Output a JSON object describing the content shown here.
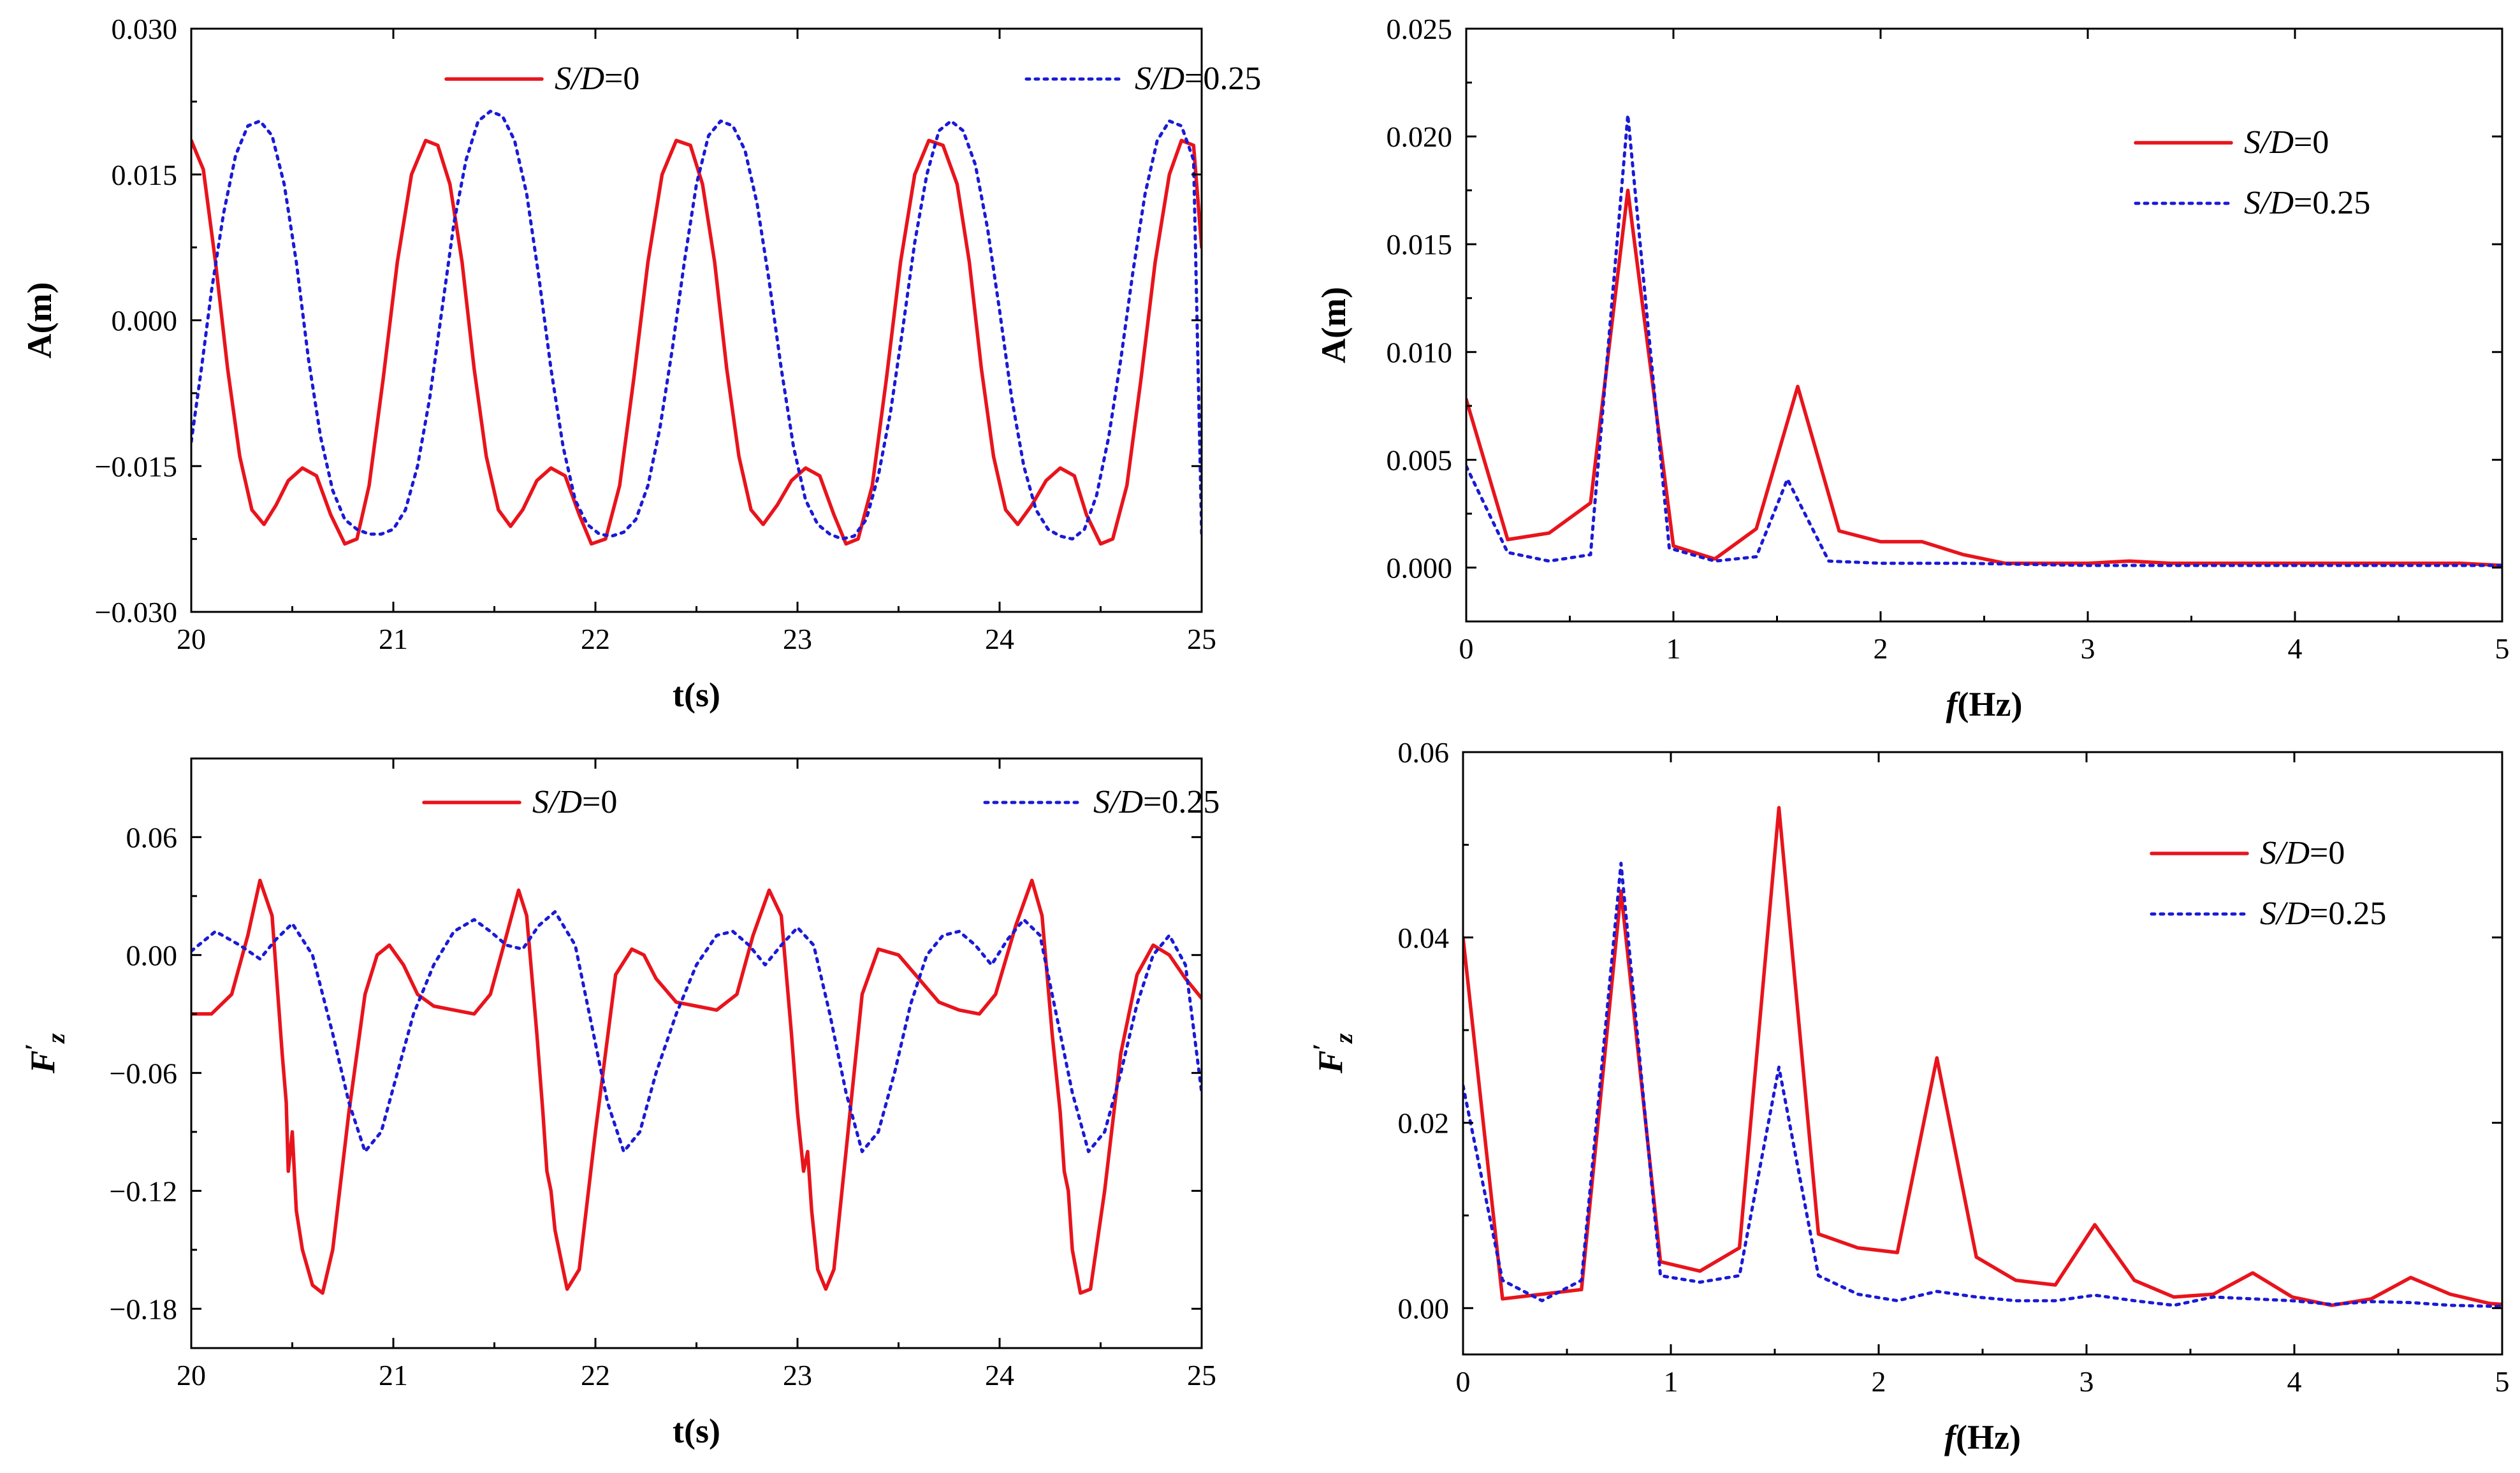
{
  "chart_data": [
    {
      "id": "panel-a-time",
      "type": "line",
      "title": "",
      "xlabel": "t(s)",
      "ylabel": "A(m)",
      "xlim": [
        20,
        25
      ],
      "ylim": [
        -0.03,
        0.03
      ],
      "xticks": [
        20,
        21,
        22,
        23,
        24,
        25
      ],
      "xtick_labels": [
        "20",
        "21",
        "22",
        "23",
        "24",
        "25"
      ],
      "yticks": [
        -0.03,
        -0.015,
        0.0,
        0.015,
        0.03
      ],
      "ytick_labels": [
        "−0.030",
        "−0.015",
        "0.000",
        "0.015",
        "0.030"
      ],
      "legend_placement": "top-center-horizontal",
      "series": [
        {
          "name_italic": "S/D",
          "name_rest": "=0",
          "color": "#e8141c",
          "dash": "solid",
          "x": [
            20.0,
            20.06,
            20.12,
            20.18,
            20.24,
            20.3,
            20.36,
            20.42,
            20.48,
            20.55,
            20.62,
            20.69,
            20.76,
            20.82,
            20.88,
            20.95,
            21.02,
            21.09,
            21.16,
            21.22,
            21.28,
            21.34,
            21.4,
            21.46,
            21.52,
            21.58,
            21.64,
            21.71,
            21.78,
            21.85,
            21.92,
            21.98,
            22.05,
            22.12,
            22.19,
            22.26,
            22.33,
            22.4,
            22.47,
            22.53,
            22.59,
            22.65,
            22.71,
            22.77,
            22.83,
            22.9,
            22.97,
            23.04,
            23.11,
            23.18,
            23.24,
            23.3,
            23.37,
            23.44,
            23.51,
            23.58,
            23.65,
            23.72,
            23.79,
            23.85,
            23.91,
            23.97,
            24.03,
            24.09,
            24.16,
            24.23,
            24.3,
            24.37,
            24.43,
            24.5,
            24.56,
            24.63,
            24.7,
            24.77,
            24.84,
            24.9,
            24.96,
            25.0
          ],
          "y": [
            0.0185,
            0.0155,
            0.006,
            -0.005,
            -0.014,
            -0.0195,
            -0.021,
            -0.019,
            -0.0165,
            -0.0152,
            -0.016,
            -0.02,
            -0.023,
            -0.0225,
            -0.017,
            -0.006,
            0.006,
            0.015,
            0.0185,
            0.018,
            0.014,
            0.006,
            -0.005,
            -0.014,
            -0.0195,
            -0.0212,
            -0.0195,
            -0.0165,
            -0.0152,
            -0.016,
            -0.02,
            -0.023,
            -0.0225,
            -0.017,
            -0.006,
            0.006,
            0.015,
            0.0185,
            0.018,
            0.014,
            0.006,
            -0.005,
            -0.014,
            -0.0195,
            -0.021,
            -0.019,
            -0.0165,
            -0.0152,
            -0.016,
            -0.02,
            -0.023,
            -0.0225,
            -0.017,
            -0.006,
            0.006,
            0.015,
            0.0185,
            0.018,
            0.014,
            0.006,
            -0.005,
            -0.014,
            -0.0195,
            -0.021,
            -0.019,
            -0.0165,
            -0.0152,
            -0.016,
            -0.02,
            -0.023,
            -0.0225,
            -0.017,
            -0.006,
            0.006,
            0.015,
            0.0185,
            0.018,
            0.0075
          ]
        },
        {
          "name_italic": "S/D",
          "name_rest": "=0.25",
          "color": "#1a1ad6",
          "dash": "dotted",
          "x": [
            20.0,
            20.05,
            20.1,
            20.16,
            20.22,
            20.28,
            20.34,
            20.4,
            20.46,
            20.52,
            20.58,
            20.64,
            20.7,
            20.76,
            20.82,
            20.88,
            20.94,
            21.0,
            21.06,
            21.12,
            21.18,
            21.24,
            21.3,
            21.36,
            21.42,
            21.48,
            21.54,
            21.6,
            21.66,
            21.72,
            21.78,
            21.84,
            21.9,
            21.96,
            22.02,
            22.08,
            22.14,
            22.2,
            22.26,
            22.32,
            22.38,
            22.44,
            22.5,
            22.56,
            22.62,
            22.68,
            22.74,
            22.8,
            22.86,
            22.92,
            22.98,
            23.04,
            23.1,
            23.16,
            23.22,
            23.28,
            23.34,
            23.4,
            23.46,
            23.52,
            23.58,
            23.64,
            23.7,
            23.76,
            23.82,
            23.88,
            23.94,
            24.0,
            24.06,
            24.12,
            24.18,
            24.24,
            24.3,
            24.36,
            24.42,
            24.48,
            24.54,
            24.6,
            24.66,
            24.72,
            24.78,
            24.84,
            24.9,
            24.96,
            25.0
          ],
          "y": [
            -0.0125,
            -0.005,
            0.003,
            0.011,
            0.017,
            0.02,
            0.0205,
            0.019,
            0.014,
            0.006,
            -0.004,
            -0.012,
            -0.0175,
            -0.0205,
            -0.0215,
            -0.022,
            -0.022,
            -0.0215,
            -0.0195,
            -0.015,
            -0.008,
            0.001,
            0.01,
            0.0165,
            0.0205,
            0.0215,
            0.021,
            0.0185,
            0.013,
            0.0045,
            -0.005,
            -0.013,
            -0.0185,
            -0.021,
            -0.022,
            -0.0222,
            -0.0218,
            -0.0205,
            -0.017,
            -0.011,
            -0.003,
            0.006,
            0.014,
            0.019,
            0.0205,
            0.02,
            0.0175,
            0.012,
            0.004,
            -0.005,
            -0.013,
            -0.0185,
            -0.021,
            -0.022,
            -0.0225,
            -0.0222,
            -0.0205,
            -0.016,
            -0.0095,
            -0.001,
            0.008,
            0.015,
            0.0195,
            0.0205,
            0.0195,
            0.016,
            0.0095,
            0.001,
            -0.008,
            -0.015,
            -0.0195,
            -0.0215,
            -0.0222,
            -0.0225,
            -0.0215,
            -0.018,
            -0.012,
            -0.004,
            0.005,
            0.013,
            0.0185,
            0.0205,
            0.02,
            0.0165,
            -0.022
          ]
        }
      ]
    },
    {
      "id": "panel-a-freq",
      "type": "line",
      "title": "",
      "xlabel_italic": "f",
      "xlabel": "(Hz)",
      "ylabel": "A(m)",
      "xlim": [
        0,
        5
      ],
      "ylim": [
        -0.0025,
        0.025
      ],
      "xticks": [
        0,
        1,
        2,
        3,
        4,
        5
      ],
      "xtick_labels": [
        "0",
        "1",
        "2",
        "3",
        "4",
        "5"
      ],
      "yticks": [
        0.0,
        0.005,
        0.01,
        0.015,
        0.02,
        0.025
      ],
      "ytick_labels": [
        "0.000",
        "0.005",
        "0.010",
        "0.015",
        "0.020",
        "0.025"
      ],
      "legend_placement": "top-right",
      "series": [
        {
          "name_italic": "S/D",
          "name_rest": "=0",
          "color": "#e8141c",
          "dash": "solid",
          "x": [
            0.0,
            0.2,
            0.4,
            0.6,
            0.78,
            1.0,
            1.2,
            1.4,
            1.6,
            1.8,
            2.0,
            2.2,
            2.4,
            2.6,
            3.0,
            3.2,
            3.4,
            3.6,
            4.0,
            4.4,
            4.8,
            5.0
          ],
          "y": [
            0.0078,
            0.0013,
            0.0016,
            0.003,
            0.0175,
            0.001,
            0.0004,
            0.0018,
            0.0084,
            0.0017,
            0.0012,
            0.0012,
            0.0006,
            0.0002,
            0.0002,
            0.0003,
            0.0002,
            0.0002,
            0.0002,
            0.0002,
            0.0002,
            0.0001
          ]
        },
        {
          "name_italic": "S/D",
          "name_rest": "=0.25",
          "color": "#1a1ad6",
          "dash": "dotted",
          "x": [
            0.0,
            0.2,
            0.4,
            0.6,
            0.78,
            0.98,
            1.2,
            1.4,
            1.55,
            1.75,
            2.0,
            2.4,
            3.0,
            3.5,
            4.0,
            4.5,
            5.0
          ],
          "y": [
            0.0047,
            0.0007,
            0.0003,
            0.0006,
            0.021,
            0.0009,
            0.0003,
            0.0005,
            0.0041,
            0.0003,
            0.0002,
            0.0002,
            0.0001,
            0.0001,
            0.0001,
            0.0001,
            0.0001
          ]
        }
      ]
    },
    {
      "id": "panel-f-time",
      "type": "line",
      "title": "",
      "xlabel": "t(s)",
      "ylabel_italic": "F",
      "ylabel_prime": "′",
      "ylabel_sub": "z",
      "xlim": [
        20,
        25
      ],
      "ylim": [
        -0.2,
        0.1
      ],
      "xticks": [
        20,
        21,
        22,
        23,
        24,
        25
      ],
      "xtick_labels": [
        "20",
        "21",
        "22",
        "23",
        "24",
        "25"
      ],
      "yticks": [
        -0.18,
        -0.12,
        -0.06,
        0.0,
        0.06
      ],
      "ytick_labels": [
        "−0.18",
        "−0.12",
        "−0.06",
        "0.00",
        "0.06"
      ],
      "legend_placement": "top-center-horizontal",
      "series": [
        {
          "name_italic": "S/D",
          "name_rest": "=0",
          "color": "#e8141c",
          "dash": "solid",
          "x": [
            20.0,
            20.1,
            20.2,
            20.28,
            20.34,
            20.4,
            20.45,
            20.47,
            20.48,
            20.5,
            20.52,
            20.55,
            20.6,
            20.65,
            20.7,
            20.78,
            20.86,
            20.92,
            20.98,
            21.05,
            21.12,
            21.2,
            21.3,
            21.4,
            21.48,
            21.56,
            21.62,
            21.66,
            21.71,
            21.74,
            21.76,
            21.78,
            21.8,
            21.83,
            21.86,
            21.92,
            22.0,
            22.1,
            22.18,
            22.24,
            22.3,
            22.4,
            22.5,
            22.6,
            22.7,
            22.78,
            22.86,
            22.92,
            22.97,
            23.0,
            23.03,
            23.05,
            23.07,
            23.1,
            23.14,
            23.18,
            23.24,
            23.32,
            23.4,
            23.5,
            23.6,
            23.7,
            23.8,
            23.9,
            23.98,
            24.08,
            24.16,
            24.21,
            24.26,
            24.3,
            24.32,
            24.34,
            24.36,
            24.4,
            24.45,
            24.52,
            24.6,
            24.68,
            24.76,
            24.84,
            24.92,
            25.0
          ],
          "y": [
            -0.03,
            -0.03,
            -0.02,
            0.01,
            0.038,
            0.02,
            -0.05,
            -0.075,
            -0.11,
            -0.09,
            -0.13,
            -0.15,
            -0.168,
            -0.172,
            -0.15,
            -0.08,
            -0.02,
            0.0,
            0.005,
            -0.005,
            -0.02,
            -0.026,
            -0.028,
            -0.03,
            -0.02,
            0.01,
            0.033,
            0.02,
            -0.04,
            -0.08,
            -0.11,
            -0.12,
            -0.14,
            -0.155,
            -0.17,
            -0.16,
            -0.09,
            -0.01,
            0.003,
            0.0,
            -0.012,
            -0.024,
            -0.026,
            -0.028,
            -0.02,
            0.01,
            0.033,
            0.02,
            -0.04,
            -0.08,
            -0.11,
            -0.1,
            -0.13,
            -0.16,
            -0.17,
            -0.16,
            -0.1,
            -0.02,
            0.003,
            0.0,
            -0.012,
            -0.024,
            -0.028,
            -0.03,
            -0.02,
            0.015,
            0.038,
            0.02,
            -0.04,
            -0.08,
            -0.11,
            -0.12,
            -0.15,
            -0.172,
            -0.17,
            -0.12,
            -0.05,
            -0.01,
            0.005,
            0.0,
            -0.012,
            -0.022
          ]
        },
        {
          "name_italic": "S/D",
          "name_rest": "=0.25",
          "color": "#1a1ad6",
          "dash": "dotted",
          "x": [
            20.0,
            20.12,
            20.24,
            20.34,
            20.42,
            20.5,
            20.6,
            20.7,
            20.78,
            20.86,
            20.94,
            21.02,
            21.1,
            21.2,
            21.3,
            21.4,
            21.48,
            21.56,
            21.64,
            21.72,
            21.8,
            21.9,
            21.98,
            22.06,
            22.14,
            22.22,
            22.3,
            22.4,
            22.5,
            22.6,
            22.68,
            22.76,
            22.84,
            22.92,
            23.0,
            23.08,
            23.16,
            23.24,
            23.32,
            23.4,
            23.48,
            23.56,
            23.64,
            23.72,
            23.8,
            23.88,
            23.96,
            24.04,
            24.12,
            24.2,
            24.28,
            24.36,
            24.44,
            24.52,
            24.6,
            24.68,
            24.76,
            24.84,
            24.92,
            25.0
          ],
          "y": [
            0.002,
            0.012,
            0.005,
            -0.002,
            0.008,
            0.016,
            0.0,
            -0.04,
            -0.075,
            -0.1,
            -0.09,
            -0.06,
            -0.03,
            -0.005,
            0.012,
            0.018,
            0.012,
            0.005,
            0.003,
            0.015,
            0.022,
            0.005,
            -0.035,
            -0.075,
            -0.1,
            -0.09,
            -0.06,
            -0.03,
            -0.005,
            0.01,
            0.012,
            0.005,
            -0.005,
            0.005,
            0.014,
            0.005,
            -0.03,
            -0.07,
            -0.1,
            -0.09,
            -0.06,
            -0.025,
            0.0,
            0.01,
            0.012,
            0.005,
            -0.005,
            0.008,
            0.018,
            0.01,
            -0.03,
            -0.07,
            -0.1,
            -0.09,
            -0.06,
            -0.025,
            0.0,
            0.01,
            -0.005,
            -0.07
          ]
        }
      ]
    },
    {
      "id": "panel-f-freq",
      "type": "line",
      "title": "",
      "xlabel_italic": "f",
      "xlabel": "(Hz)",
      "ylabel_italic": "F",
      "ylabel_prime": "′",
      "ylabel_sub": "z",
      "xlim": [
        0,
        5
      ],
      "ylim": [
        -0.005,
        0.06
      ],
      "xticks": [
        0,
        1,
        2,
        3,
        4,
        5
      ],
      "xtick_labels": [
        "0",
        "1",
        "2",
        "3",
        "4",
        "5"
      ],
      "yticks": [
        0.0,
        0.02,
        0.04,
        0.06
      ],
      "ytick_labels": [
        "0.00",
        "0.02",
        "0.04",
        "0.06"
      ],
      "legend_placement": "top-right",
      "series": [
        {
          "name_italic": "S/D",
          "name_rest": "=0",
          "color": "#e8141c",
          "dash": "solid",
          "x": [
            0.0,
            0.19,
            0.38,
            0.57,
            0.76,
            0.95,
            1.14,
            1.33,
            1.52,
            1.71,
            1.9,
            2.09,
            2.28,
            2.47,
            2.66,
            2.85,
            3.04,
            3.23,
            3.42,
            3.61,
            3.8,
            3.99,
            4.18,
            4.37,
            4.56,
            4.75,
            4.94,
            5.0
          ],
          "y": [
            0.04,
            0.001,
            0.0015,
            0.002,
            0.045,
            0.005,
            0.004,
            0.0065,
            0.054,
            0.008,
            0.0065,
            0.006,
            0.027,
            0.0055,
            0.003,
            0.0025,
            0.009,
            0.003,
            0.0012,
            0.0015,
            0.0038,
            0.0012,
            0.0003,
            0.001,
            0.0033,
            0.0015,
            0.0005,
            0.0004
          ]
        },
        {
          "name_italic": "S/D",
          "name_rest": "=0.25",
          "color": "#1a1ad6",
          "dash": "dotted",
          "x": [
            0.0,
            0.19,
            0.38,
            0.57,
            0.76,
            0.95,
            1.14,
            1.33,
            1.52,
            1.71,
            1.9,
            2.09,
            2.28,
            2.47,
            2.66,
            2.85,
            3.04,
            3.23,
            3.42,
            3.61,
            3.8,
            3.99,
            4.18,
            4.37,
            4.56,
            4.75,
            4.94,
            5.0
          ],
          "y": [
            0.024,
            0.003,
            0.0008,
            0.003,
            0.048,
            0.0035,
            0.0028,
            0.0035,
            0.026,
            0.0035,
            0.0015,
            0.0008,
            0.0018,
            0.0012,
            0.0008,
            0.0008,
            0.0014,
            0.0008,
            0.0003,
            0.0012,
            0.001,
            0.0008,
            0.0004,
            0.0007,
            0.0006,
            0.0003,
            0.0002,
            0.0002
          ]
        }
      ]
    }
  ]
}
